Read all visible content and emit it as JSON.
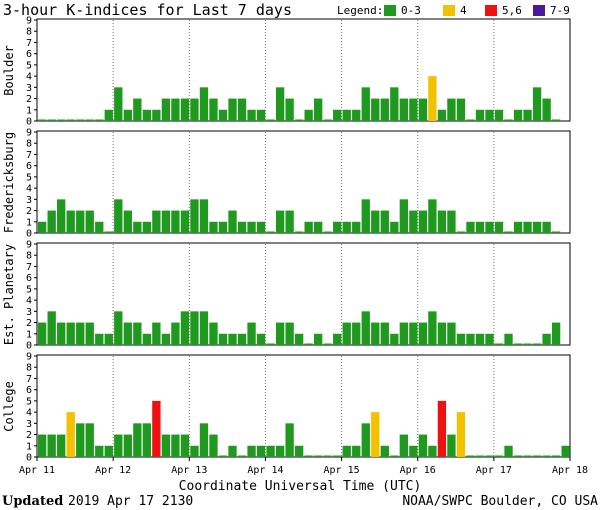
{
  "title": "3-hour K-indices for Last 7 days",
  "legend": {
    "label": "Legend:",
    "items": [
      {
        "label": "0-3",
        "color": "#1f9a1f"
      },
      {
        "label": "4",
        "color": "#f2c200"
      },
      {
        "label": "5,6",
        "color": "#ee1111"
      },
      {
        "label": "7-9",
        "color": "#4a1a99"
      }
    ]
  },
  "xlabel": "Coordinate Universal Time (UTC)",
  "footer": {
    "updated_word": "Updated",
    "updated_value": "2019 Apr 17 2130",
    "source": "NOAA/SWPC Boulder, CO USA"
  },
  "chart_data": {
    "type": "bar",
    "x_ticks": [
      "Apr 11",
      "Apr 12",
      "Apr 13",
      "Apr 14",
      "Apr 15",
      "Apr 16",
      "Apr 17",
      "Apr 18"
    ],
    "y_ticks": [
      "0",
      "1",
      "2",
      "3",
      "4",
      "5",
      "6",
      "7",
      "8",
      "9"
    ],
    "ylim": [
      0,
      9
    ],
    "intervals_per_day": 8,
    "total_intervals": 56,
    "color_scale": {
      "0-3": "#1f9a1f",
      "4": "#f2c200",
      "5-6": "#ee1111",
      "7-9": "#4a1a99"
    },
    "series": [
      {
        "name": "Boulder",
        "values": [
          0,
          0,
          0,
          0,
          0,
          0,
          0,
          1,
          3,
          1,
          2,
          1,
          1,
          2,
          2,
          2,
          2,
          3,
          2,
          1,
          2,
          2,
          1,
          1,
          0,
          3,
          2,
          0,
          1,
          2,
          0,
          1,
          1,
          1,
          3,
          2,
          2,
          3,
          2,
          2,
          2,
          4,
          1,
          2,
          2,
          0,
          1,
          1,
          1,
          0,
          1,
          1,
          3,
          2,
          0
        ]
      },
      {
        "name": "Fredericksburg",
        "values": [
          1,
          2,
          3,
          2,
          2,
          2,
          1,
          0,
          3,
          2,
          1,
          1,
          2,
          2,
          2,
          2,
          3,
          3,
          1,
          1,
          2,
          1,
          1,
          1,
          0,
          2,
          2,
          0,
          1,
          1,
          0,
          1,
          1,
          1,
          3,
          2,
          2,
          1,
          3,
          2,
          2,
          3,
          2,
          2,
          0,
          1,
          1,
          1,
          1,
          0,
          1,
          1,
          1,
          1,
          0
        ]
      },
      {
        "name": "Est. Planetary",
        "values": [
          2,
          3,
          2,
          2,
          2,
          2,
          1,
          1,
          3,
          2,
          2,
          1,
          2,
          1,
          2,
          3,
          3,
          3,
          2,
          1,
          1,
          1,
          2,
          1,
          0,
          2,
          2,
          1,
          0,
          1,
          0,
          1,
          2,
          2,
          3,
          2,
          2,
          1,
          2,
          2,
          2,
          3,
          2,
          2,
          1,
          1,
          1,
          1,
          0,
          1,
          0,
          0,
          0,
          1,
          2
        ]
      },
      {
        "name": "College",
        "values": [
          2,
          2,
          2,
          4,
          3,
          3,
          1,
          1,
          2,
          2,
          3,
          3,
          5,
          2,
          2,
          2,
          1,
          3,
          2,
          0,
          1,
          0,
          1,
          1,
          1,
          1,
          3,
          1,
          0,
          0,
          0,
          0,
          1,
          1,
          3,
          4,
          1,
          0,
          2,
          1,
          2,
          1,
          5,
          2,
          4,
          0,
          0,
          0,
          0,
          1,
          0,
          0,
          0,
          0,
          0,
          1
        ]
      }
    ]
  }
}
